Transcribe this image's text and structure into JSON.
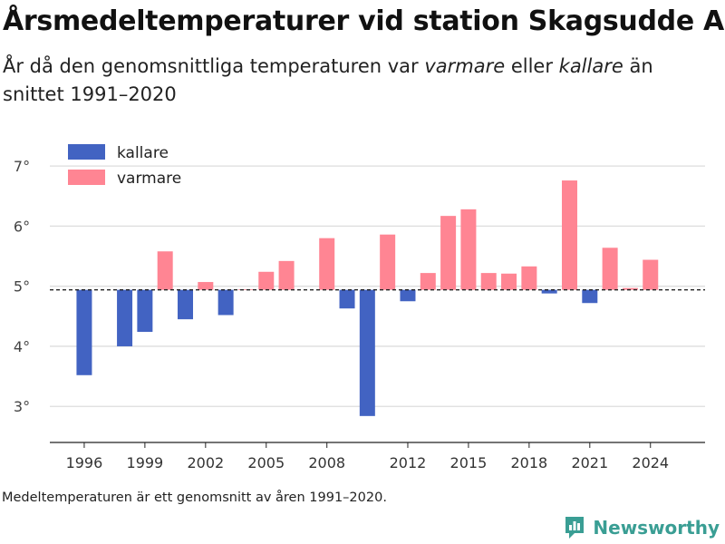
{
  "header": {
    "title": "Årsmedeltemperaturer vid station Skagsudde A",
    "subtitle_pre": "År då den genomsnittliga temperaturen var ",
    "subtitle_em1": "varmare",
    "subtitle_mid": " eller ",
    "subtitle_em2": "kallare",
    "subtitle_post": " än snittet 1991–2020"
  },
  "footer": {
    "note": "Medeltemperaturen är ett genomsnitt av åren 1991–2020.",
    "brand": "Newsworthy"
  },
  "colors": {
    "colder": "#4263c2",
    "warmer": "#ff8593",
    "grid": "#dddddd",
    "brand": "#3a9e94"
  },
  "icons": {
    "brand_logo": "bar-chart-speech-bubble-icon"
  },
  "chart_data": {
    "type": "bar",
    "baseline": 4.94,
    "ylim": [
      2.4,
      7.5
    ],
    "yticks": [
      3,
      4,
      5,
      6,
      7
    ],
    "ytick_labels": [
      "3°",
      "4°",
      "5°",
      "6°",
      "7°"
    ],
    "xlim": [
      1994.3,
      2026.7
    ],
    "xticks": [
      1996,
      1999,
      2002,
      2005,
      2008,
      2012,
      2015,
      2018,
      2021,
      2024
    ],
    "xtick_labels": [
      "1996",
      "1999",
      "2002",
      "2005",
      "2008",
      "2012",
      "2015",
      "2018",
      "2021",
      "2024"
    ],
    "legend": {
      "position": "top-left",
      "colder": "kallare",
      "warmer": "varmare"
    },
    "grid": true,
    "years": [
      1996,
      1998,
      1999,
      2000,
      2001,
      2002,
      2003,
      2004,
      2005,
      2006,
      2008,
      2009,
      2010,
      2011,
      2012,
      2013,
      2014,
      2015,
      2016,
      2017,
      2018,
      2019,
      2020,
      2021,
      2022,
      2023,
      2024
    ],
    "values": [
      3.52,
      4.0,
      4.24,
      5.58,
      4.45,
      5.07,
      4.52,
      4.95,
      5.24,
      5.42,
      5.8,
      4.63,
      2.84,
      5.86,
      4.75,
      5.22,
      6.17,
      6.28,
      5.22,
      5.21,
      5.33,
      4.88,
      6.76,
      4.72,
      5.64,
      4.97,
      5.44
    ]
  }
}
